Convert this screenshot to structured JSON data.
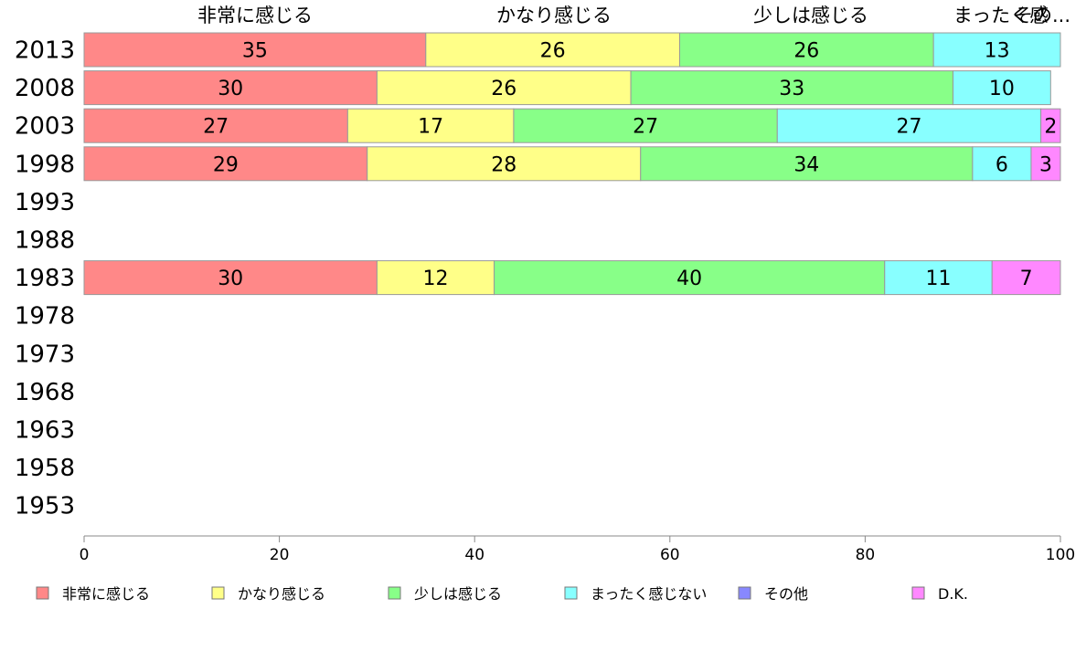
{
  "chart_data": {
    "type": "bar",
    "orientation": "horizontal",
    "stacked": true,
    "categories": [
      "2013",
      "2008",
      "2003",
      "1998",
      "1993",
      "1988",
      "1983",
      "1978",
      "1973",
      "1968",
      "1963",
      "1958",
      "1953"
    ],
    "series": [
      {
        "name": "非常に感じる",
        "color": "#ff8888",
        "values": [
          35,
          30,
          27,
          29,
          null,
          null,
          30,
          null,
          null,
          null,
          null,
          null,
          null
        ]
      },
      {
        "name": "かなり感じる",
        "color": "#ffff88",
        "values": [
          26,
          26,
          17,
          28,
          null,
          null,
          12,
          null,
          null,
          null,
          null,
          null,
          null
        ]
      },
      {
        "name": "少しは感じる",
        "color": "#88ff88",
        "values": [
          26,
          33,
          27,
          34,
          null,
          null,
          40,
          null,
          null,
          null,
          null,
          null,
          null
        ]
      },
      {
        "name": "まったく感じない",
        "color": "#88ffff",
        "values": [
          13,
          10,
          27,
          6,
          null,
          null,
          11,
          null,
          null,
          null,
          null,
          null,
          null
        ]
      },
      {
        "name": "その他",
        "color": "#8888ff",
        "values": [
          0,
          0,
          0,
          0,
          null,
          null,
          0,
          null,
          null,
          null,
          null,
          null,
          null
        ]
      },
      {
        "name": "D.K.",
        "color": "#ff88ff",
        "values": [
          0,
          0,
          2,
          3,
          null,
          null,
          7,
          null,
          null,
          null,
          null,
          null,
          null
        ]
      }
    ],
    "xlim": [
      0,
      100
    ],
    "xticks": [
      "0",
      "20",
      "40",
      "60",
      "80",
      "100"
    ],
    "top_labels": [
      "非常に感じる",
      "かなり感じる",
      "少しは感じる",
      "まったく感",
      "その..."
    ],
    "legend_position": "bottom",
    "grid": false
  }
}
